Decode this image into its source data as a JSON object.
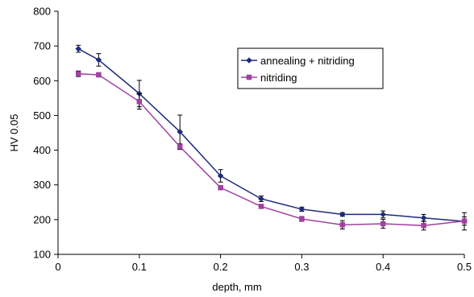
{
  "chart_data": {
    "type": "line",
    "xlabel": "depth, mm",
    "ylabel": "HV 0.05",
    "xlim": [
      0,
      0.5
    ],
    "ylim": [
      100,
      800
    ],
    "x_ticks": [
      0,
      0.1,
      0.2,
      0.3,
      0.4,
      0.5
    ],
    "x_tick_labels": [
      "0",
      "0.1",
      "0.2",
      "0.3",
      "0.4",
      "0.5"
    ],
    "y_ticks": [
      100,
      200,
      300,
      400,
      500,
      600,
      700,
      800
    ],
    "y_tick_labels": [
      "100",
      "200",
      "300",
      "400",
      "500",
      "600",
      "700",
      "800"
    ],
    "grid": false,
    "legend_position": "top-right",
    "series": [
      {
        "name": "annealing + nitriding",
        "color": "#1f2a7a",
        "marker": "diamond",
        "x": [
          0.025,
          0.05,
          0.1,
          0.15,
          0.2,
          0.25,
          0.3,
          0.35,
          0.4,
          0.45,
          0.5
        ],
        "y": [
          692,
          660,
          563,
          453,
          326,
          260,
          230,
          215,
          215,
          205,
          195
        ],
        "err": [
          10,
          18,
          38,
          48,
          18,
          8,
          6,
          5,
          10,
          10,
          25
        ]
      },
      {
        "name": "nitriding",
        "color": "#a040a0",
        "marker": "square",
        "x": [
          0.025,
          0.05,
          0.1,
          0.15,
          0.2,
          0.25,
          0.3,
          0.35,
          0.4,
          0.45,
          0.5
        ],
        "y": [
          620,
          617,
          540,
          410,
          292,
          238,
          202,
          185,
          188,
          183,
          196
        ],
        "err": [
          8,
          6,
          22,
          8,
          4,
          4,
          7,
          12,
          13,
          13,
          12
        ]
      }
    ]
  }
}
